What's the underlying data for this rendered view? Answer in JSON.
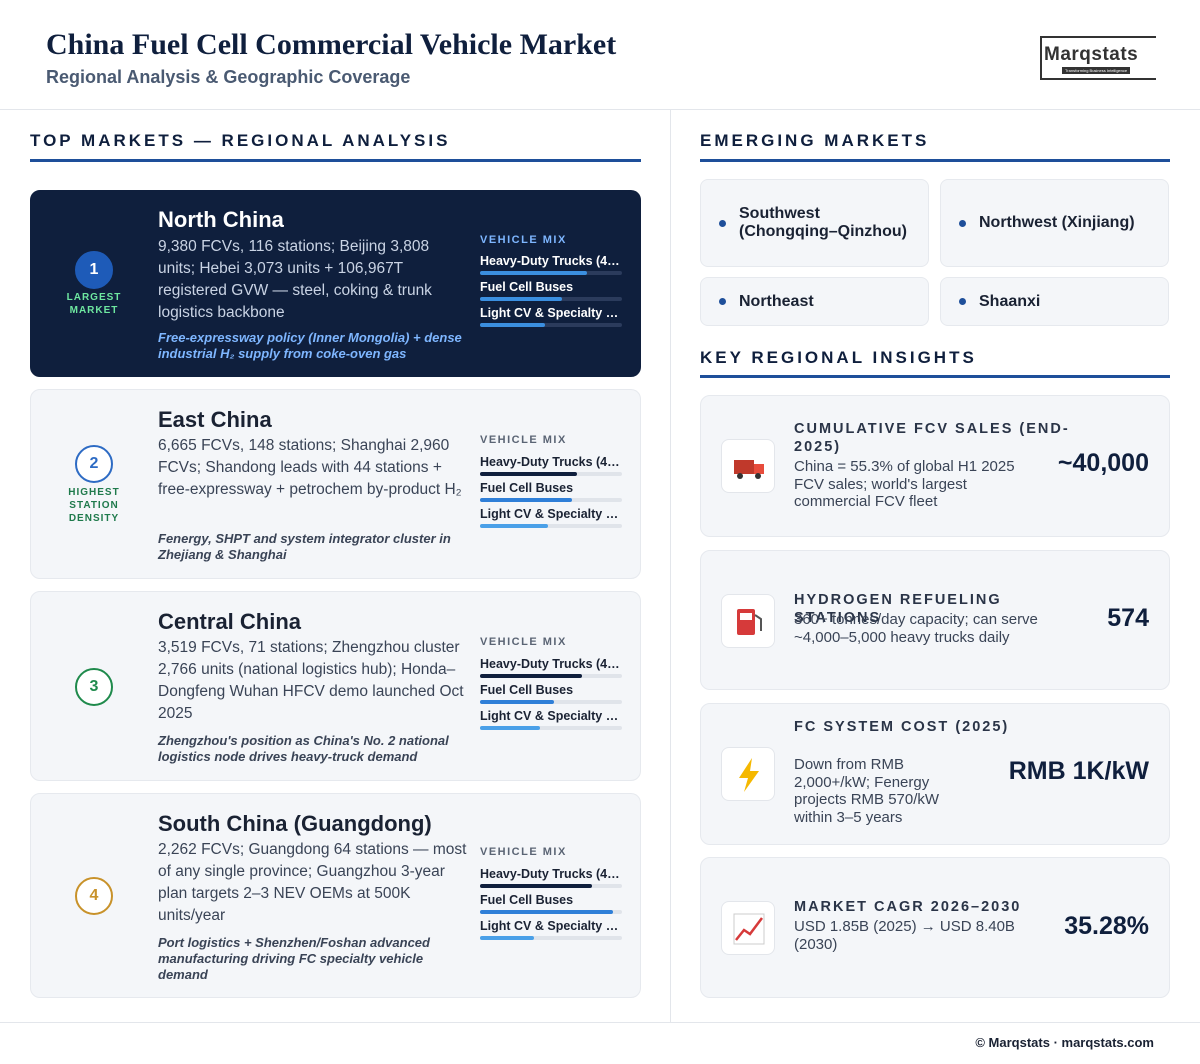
{
  "header": {
    "title": "China Fuel Cell Commercial Vehicle Market",
    "subtitle": "Regional Analysis & Geographic Coverage",
    "logo": "Marqstats",
    "logo_tagline": "Transforming Business Intelligence"
  },
  "top_markets": {
    "heading": "TOP MARKETS — REGIONAL ANALYSIS",
    "mix_heading": "VEHICLE MIX",
    "regions": [
      {
        "rank": 1,
        "badge": "LARGEST MARKET",
        "name": "North China",
        "description": "9,380 FCVs, 116 stations; Beijing 3,808 units; Hebei 3,073 units + 106,967T registered GVW — steel, coking & trunk logistics backbone",
        "note": "Free-expressway policy (Inner Mongolia) + dense industrial H₂ supply from coke-oven gas",
        "mix": [
          {
            "label": "Heavy-Duty Trucks (4…",
            "value": 75
          },
          {
            "label": "Fuel Cell Buses",
            "value": 58
          },
          {
            "label": "Light CV & Specialty …",
            "value": 46
          }
        ]
      },
      {
        "rank": 2,
        "badge": "HIGHEST STATION DENSITY",
        "name": "East China",
        "description": "6,665 FCVs, 148 stations; Shanghai 2,960 FCVs; Shandong leads with 44 stations + free-expressway + petrochem by-product H₂",
        "note": "Fenergy, SHPT and system integrator cluster in Zhejiang & Shanghai",
        "mix": [
          {
            "label": "Heavy-Duty Trucks (4…",
            "value": 68
          },
          {
            "label": "Fuel Cell Buses",
            "value": 65
          },
          {
            "label": "Light CV & Specialty …",
            "value": 48
          }
        ]
      },
      {
        "rank": 3,
        "name": "Central China",
        "description": "3,519 FCVs, 71 stations; Zhengzhou cluster 2,766 units (national logistics hub); Honda–Dongfeng Wuhan HFCV demo launched Oct 2025",
        "note": "Zhengzhou's position as China's No. 2 national logistics node drives heavy-truck demand",
        "mix": [
          {
            "label": "Heavy-Duty Trucks (4…",
            "value": 72
          },
          {
            "label": "Fuel Cell Buses",
            "value": 52
          },
          {
            "label": "Light CV & Specialty …",
            "value": 42
          }
        ]
      },
      {
        "rank": 4,
        "name": "South China (Guangdong)",
        "description": "2,262 FCVs; Guangdong 64 stations — most of any single province; Guangzhou 3-year plan targets 2–3 NEV OEMs at 500K units/year",
        "note": "Port logistics + Shenzhen/Foshan advanced manufacturing driving FC specialty vehicle demand",
        "mix": [
          {
            "label": "Heavy-Duty Trucks (4…",
            "value": 79
          },
          {
            "label": "Fuel Cell Buses",
            "value": 94
          },
          {
            "label": "Light CV & Specialty …",
            "value": 38
          }
        ]
      }
    ]
  },
  "emerging_markets": {
    "heading": "EMERGING MARKETS",
    "items": [
      "Southwest (Chongqing–Qinzhou)",
      "Northwest (Xinjiang)",
      "Northeast",
      "Shaanxi"
    ]
  },
  "insights": {
    "heading": "KEY REGIONAL INSIGHTS",
    "items": [
      {
        "title": "CUMULATIVE FCV SALES (END-2025)",
        "text": "China = 55.3% of global H1 2025 FCV sales; world's largest commercial FCV fleet",
        "value": "~40,000"
      },
      {
        "title": "HYDROGEN REFUELING STATIONS",
        "text": "360+ tonnes/day capacity; can serve ~4,000–5,000 heavy trucks daily",
        "value": "574"
      },
      {
        "title": "FC SYSTEM COST (2025)",
        "text": "Down from RMB 2,000+/kW; Fenergy projects RMB 570/kW within 3–5 years",
        "value": "RMB 1K/kW"
      },
      {
        "title": "MARKET CAGR 2026–2030",
        "text": "USD 1.85B (2025) → USD 8.40B (2030)",
        "value": "35.28%"
      }
    ]
  },
  "footer": {
    "text": "© Marqstats · marqstats.com"
  }
}
